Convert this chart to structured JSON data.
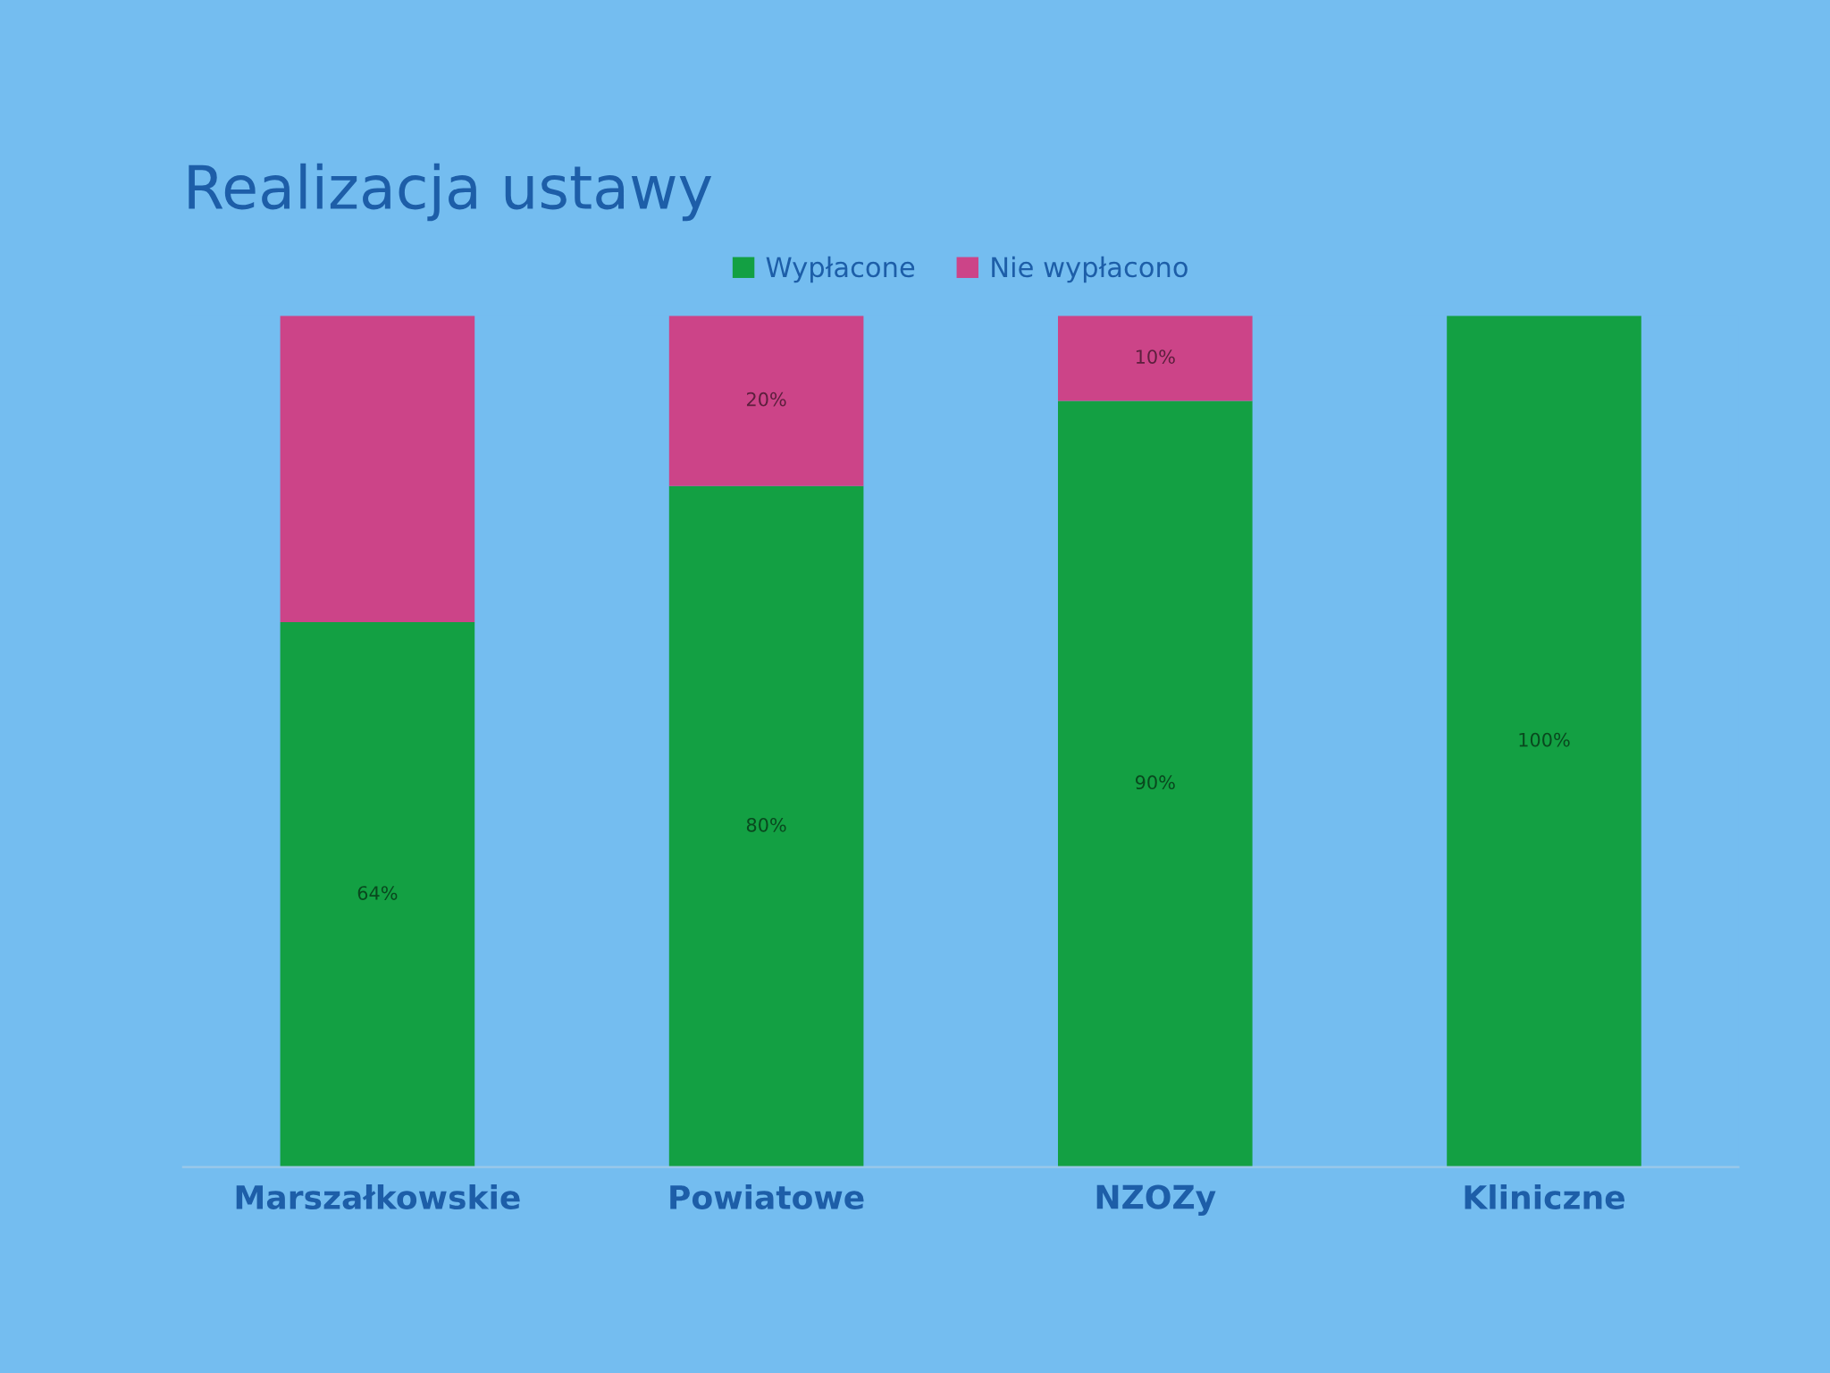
{
  "chart_data": {
    "type": "bar",
    "title": "Realizacja ustawy",
    "categories": [
      "Marszałkowskie",
      "Powiatowe",
      "NZOZy",
      "Kliniczne"
    ],
    "stacked": true,
    "series": [
      {
        "name": "Wypłacone",
        "color": "#13a043",
        "values": [
          64,
          80,
          90,
          100
        ],
        "value_labels": [
          "64%",
          "80%",
          "90%",
          "100%"
        ]
      },
      {
        "name": "Nie wypłacono",
        "color": "#cc4488",
        "values": [
          36,
          20,
          10,
          null
        ],
        "value_labels": [
          null,
          "20%",
          "10%",
          null
        ]
      }
    ],
    "ylim": [
      0,
      100
    ],
    "tick_labels": "x",
    "legend": "top",
    "grid": false
  }
}
